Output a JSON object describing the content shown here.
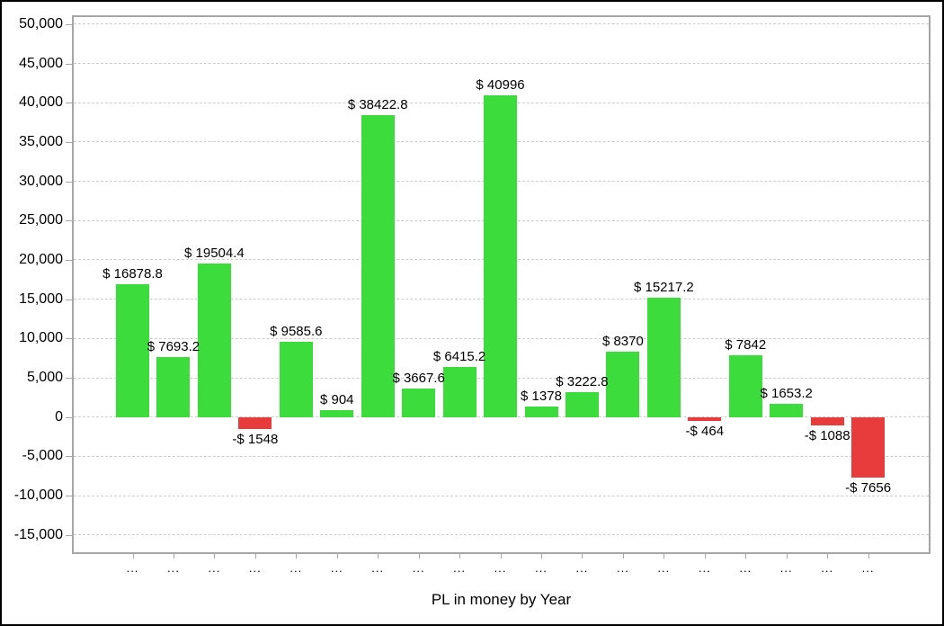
{
  "chart_data": {
    "type": "bar",
    "title": "",
    "xlabel": "PL in money by Year",
    "ylabel": "",
    "categories": [
      "...",
      "...",
      "...",
      "...",
      "...",
      "...",
      "...",
      "...",
      "...",
      "...",
      "...",
      "...",
      "...",
      "...",
      "...",
      "...",
      "...",
      "...",
      "..."
    ],
    "values": [
      16878.8,
      7693.2,
      19504.4,
      -1548,
      9585.6,
      904,
      38422.8,
      3667.6,
      6415.2,
      40996,
      1378,
      3222.8,
      8370,
      15217.2,
      -464,
      7842,
      1653.2,
      -1088,
      -7656
    ],
    "bar_labels": [
      "$ 16878.8",
      "$ 7693.2",
      "$ 19504.4",
      "-$ 1548",
      "$ 9585.6",
      "$ 904",
      "$ 38422.8",
      "$ 3667.6",
      "$ 6415.2",
      "$ 40996",
      "$ 1378",
      "$ 3222.8",
      "$ 8370",
      "$ 15217.2",
      "-$ 464",
      "$ 7842",
      "$ 1653.2",
      "-$ 1088",
      "-$ 7656"
    ],
    "y_tick_values": [
      50000,
      45000,
      40000,
      35000,
      30000,
      25000,
      20000,
      15000,
      10000,
      5000,
      0,
      -5000,
      -10000,
      -15000
    ],
    "y_tick_labels": [
      "50,000",
      "45,000",
      "40,000",
      "35,000",
      "30,000",
      "25,000",
      "20,000",
      "15,000",
      "10,000",
      "5,000",
      "0",
      "-5,000",
      "-10,000",
      "-15,000"
    ],
    "ylim": [
      -17200,
      50900
    ],
    "grid": "horizontal-dashed",
    "legend": false,
    "colors": {
      "positive_bar": "#3cdc3c",
      "negative_bar": "#e83b3b",
      "gridline": "#cccccc",
      "plot_border": "#a6a6a6",
      "text": "#000000"
    }
  }
}
